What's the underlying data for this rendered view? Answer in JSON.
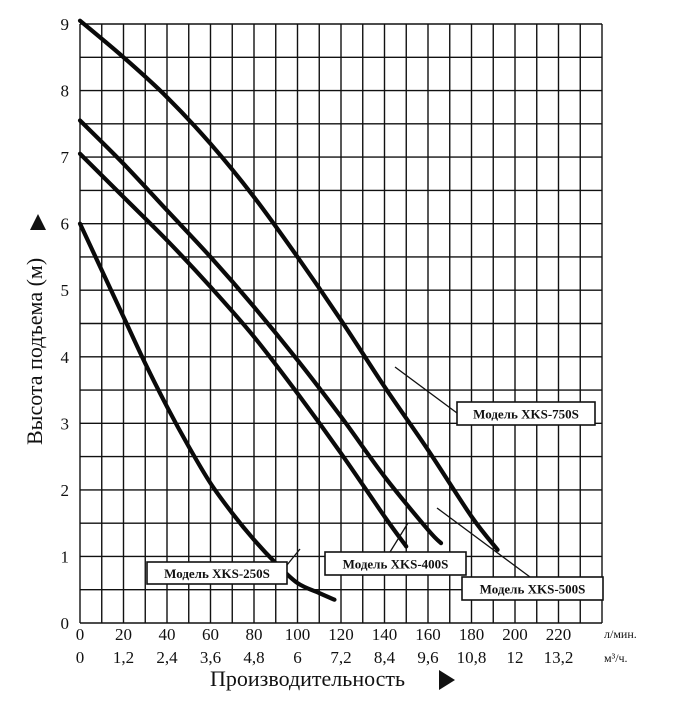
{
  "chart_data": {
    "type": "line",
    "xlabel": "Производительность",
    "ylabel": "Высота подъема (м)",
    "x_unit_primary": "л/мин.",
    "x_unit_secondary": "м³/ч.",
    "xlim": [
      0,
      240
    ],
    "ylim": [
      0,
      9
    ],
    "x_ticks_primary": [
      "0",
      "20",
      "40",
      "60",
      "80",
      "100",
      "120",
      "140",
      "160",
      "180",
      "200",
      "220"
    ],
    "x_ticks_secondary": [
      "0",
      "1,2",
      "2,4",
      "3,6",
      "4,8",
      "6",
      "7,2",
      "8,4",
      "9,6",
      "10,8",
      "12",
      "13,2"
    ],
    "y_ticks": [
      "0",
      "1",
      "2",
      "3",
      "4",
      "5",
      "6",
      "7",
      "8",
      "9"
    ],
    "grid": true,
    "series": [
      {
        "name": "Модель XKS-250S",
        "x": [
          0,
          10,
          20,
          30,
          40,
          50,
          60,
          70,
          80,
          90,
          100,
          110,
          117
        ],
        "y": [
          6.0,
          5.3,
          4.6,
          3.9,
          3.25,
          2.65,
          2.1,
          1.65,
          1.25,
          0.9,
          0.6,
          0.45,
          0.35
        ]
      },
      {
        "name": "Модель XKS-400S",
        "x": [
          0,
          20,
          40,
          60,
          80,
          100,
          120,
          140,
          150
        ],
        "y": [
          7.05,
          6.4,
          5.75,
          5.05,
          4.3,
          3.45,
          2.55,
          1.6,
          1.15
        ]
      },
      {
        "name": "Модель XKS-500S",
        "x": [
          0,
          20,
          40,
          60,
          80,
          100,
          120,
          140,
          160,
          166
        ],
        "y": [
          7.55,
          6.9,
          6.2,
          5.5,
          4.75,
          3.95,
          3.1,
          2.2,
          1.4,
          1.2
        ]
      },
      {
        "name": "Модель XKS-750S",
        "x": [
          0,
          20,
          40,
          60,
          80,
          100,
          120,
          140,
          160,
          180,
          192
        ],
        "y": [
          9.05,
          8.5,
          7.9,
          7.2,
          6.4,
          5.5,
          4.55,
          3.55,
          2.6,
          1.6,
          1.1
        ]
      }
    ],
    "labels": [
      {
        "series": "Модель XKS-750S",
        "text": "Модель XKS-750S"
      },
      {
        "series": "Модель XKS-400S",
        "text": "Модель XKS-400S"
      },
      {
        "series": "Модель XKS-250S",
        "text": "Модель XKS-250S"
      },
      {
        "series": "Модель XKS-500S",
        "text": "Модель XKS-500S"
      }
    ]
  }
}
